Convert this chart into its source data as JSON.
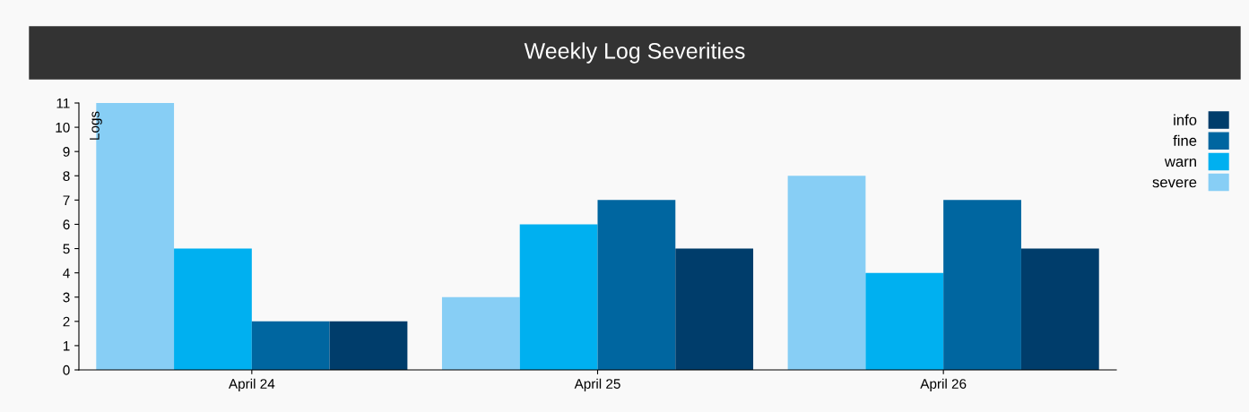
{
  "chart_data": {
    "type": "bar",
    "title": "Weekly Log Severities",
    "ylabel": "Logs",
    "categories": [
      "April 24",
      "April 25",
      "April 26"
    ],
    "series": [
      {
        "name": "severe",
        "color": "#87cef5",
        "values": [
          11,
          3,
          8
        ]
      },
      {
        "name": "warn",
        "color": "#00b0f0",
        "values": [
          5,
          6,
          4
        ]
      },
      {
        "name": "fine",
        "color": "#0066a0",
        "values": [
          2,
          7,
          7
        ]
      },
      {
        "name": "info",
        "color": "#003d6b",
        "values": [
          2,
          5,
          5
        ]
      }
    ],
    "ylim": [
      0,
      11
    ],
    "yticks": [
      0,
      1,
      2,
      3,
      4,
      5,
      6,
      7,
      8,
      9,
      10,
      11
    ],
    "grid": false,
    "legend": "top right"
  }
}
